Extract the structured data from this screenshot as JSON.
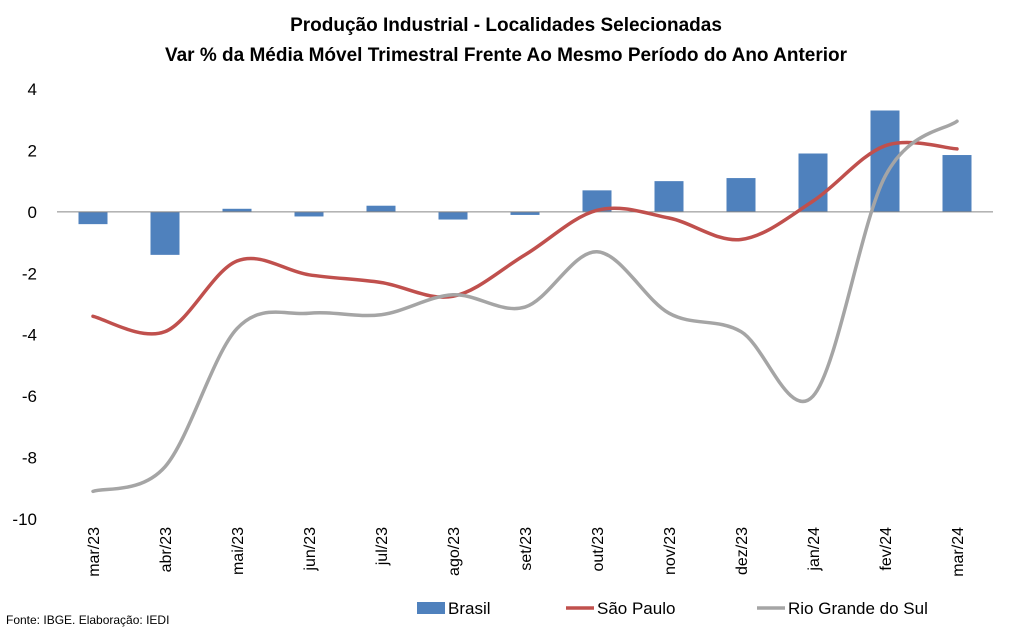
{
  "chart_data": {
    "type": "bar+line",
    "title": "Produção Industrial - Localidades Selecionadas",
    "subtitle": "Var % da Média Móvel Trimestral Frente Ao Mesmo Período do Ano Anterior",
    "categories": [
      "mar/23",
      "abr/23",
      "mai/23",
      "jun/23",
      "jul/23",
      "ago/23",
      "set/23",
      "out/23",
      "nov/23",
      "dez/23",
      "jan/24",
      "fev/24",
      "mar/24"
    ],
    "ylim": [
      -10,
      4
    ],
    "yticks": [
      4,
      2,
      0,
      -2,
      -4,
      -6,
      -8,
      -10
    ],
    "grid": false,
    "legend_position": "bottom",
    "series": [
      {
        "name": "Brasil",
        "kind": "bar",
        "color": "#4f81bd",
        "values": [
          -0.4,
          -1.4,
          0.1,
          -0.15,
          0.2,
          -0.25,
          -0.1,
          0.7,
          1.0,
          1.1,
          1.9,
          3.3,
          1.85
        ]
      },
      {
        "name": "São Paulo",
        "kind": "line",
        "color": "#c0504d",
        "values": [
          -3.4,
          -3.9,
          -1.6,
          -2.05,
          -2.3,
          -2.75,
          -1.4,
          0.05,
          -0.2,
          -0.9,
          0.35,
          2.15,
          2.05
        ]
      },
      {
        "name": "Rio Grande do Sul",
        "kind": "line",
        "color": "#a5a5a5",
        "values": [
          -9.1,
          -8.3,
          -3.8,
          -3.3,
          -3.35,
          -2.7,
          -3.1,
          -1.3,
          -3.3,
          -3.9,
          -6.0,
          1.15,
          2.95
        ]
      }
    ]
  },
  "source": "Fonte: IBGE. Elaboração: IEDI"
}
